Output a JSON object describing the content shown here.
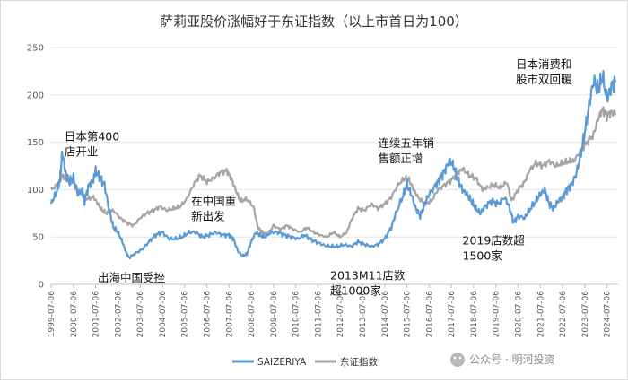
{
  "chart_data": {
    "type": "line",
    "title": "萨莉亚股价涨幅好于东证指数（以上市首日为100）",
    "xlabel": "",
    "ylabel": "",
    "ylim": [
      0,
      250
    ],
    "yticks": [
      "0",
      "50",
      "100",
      "150",
      "200",
      "250"
    ],
    "x_ticks": [
      "1999-07-06",
      "2000-07-06",
      "2001-07-06",
      "2002-07-06",
      "2003-07-06",
      "2004-07-06",
      "2005-07-06",
      "2006-07-06",
      "2007-07-06",
      "2008-07-06",
      "2009-07-06",
      "2010-07-06",
      "2011-07-06",
      "2012-07-06",
      "2013-07-06",
      "2014-07-06",
      "2015-07-06",
      "2016-07-06",
      "2017-07-06",
      "2018-07-06",
      "2019-07-06",
      "2020-07-06",
      "2021-07-06",
      "2022-07-06",
      "2023-07-06",
      "2024-07-06"
    ],
    "x_start": 1999.5,
    "x_end": 2025.0,
    "grid": true,
    "legend_position": "bottom-left",
    "series": [
      {
        "name": "SAIZERIYA",
        "color": "#5b9bd5",
        "points": [
          [
            1999.5,
            85
          ],
          [
            1999.7,
            95
          ],
          [
            1999.9,
            110
          ],
          [
            2000.0,
            140
          ],
          [
            2000.15,
            118
          ],
          [
            2000.3,
            108
          ],
          [
            2000.5,
            112
          ],
          [
            2000.7,
            95
          ],
          [
            2000.9,
            100
          ],
          [
            2001.0,
            88
          ],
          [
            2001.2,
            105
          ],
          [
            2001.4,
            110
          ],
          [
            2001.5,
            120
          ],
          [
            2001.7,
            112
          ],
          [
            2001.9,
            105
          ],
          [
            2002.1,
            80
          ],
          [
            2002.3,
            60
          ],
          [
            2002.5,
            55
          ],
          [
            2002.7,
            45
          ],
          [
            2002.85,
            35
          ],
          [
            2003.0,
            28
          ],
          [
            2003.3,
            33
          ],
          [
            2003.6,
            37
          ],
          [
            2003.9,
            45
          ],
          [
            2004.2,
            52
          ],
          [
            2004.5,
            55
          ],
          [
            2004.8,
            48
          ],
          [
            2005.1,
            48
          ],
          [
            2005.4,
            50
          ],
          [
            2005.7,
            55
          ],
          [
            2006.0,
            55
          ],
          [
            2006.3,
            50
          ],
          [
            2006.6,
            52
          ],
          [
            2006.9,
            55
          ],
          [
            2007.2,
            52
          ],
          [
            2007.5,
            52
          ],
          [
            2007.7,
            48
          ],
          [
            2007.9,
            35
          ],
          [
            2008.1,
            30
          ],
          [
            2008.3,
            32
          ],
          [
            2008.5,
            45
          ],
          [
            2008.7,
            55
          ],
          [
            2008.9,
            52
          ],
          [
            2009.1,
            50
          ],
          [
            2009.4,
            55
          ],
          [
            2009.7,
            55
          ],
          [
            2010.0,
            52
          ],
          [
            2010.3,
            50
          ],
          [
            2010.6,
            48
          ],
          [
            2010.9,
            52
          ],
          [
            2011.2,
            47
          ],
          [
            2011.5,
            44
          ],
          [
            2011.8,
            41
          ],
          [
            2012.1,
            40
          ],
          [
            2012.4,
            40
          ],
          [
            2012.7,
            42
          ],
          [
            2013.0,
            40
          ],
          [
            2013.3,
            45
          ],
          [
            2013.6,
            42
          ],
          [
            2013.9,
            40
          ],
          [
            2014.2,
            42
          ],
          [
            2014.5,
            48
          ],
          [
            2014.8,
            60
          ],
          [
            2015.0,
            75
          ],
          [
            2015.3,
            92
          ],
          [
            2015.5,
            105
          ],
          [
            2015.7,
            95
          ],
          [
            2015.9,
            80
          ],
          [
            2016.1,
            72
          ],
          [
            2016.3,
            85
          ],
          [
            2016.5,
            95
          ],
          [
            2016.8,
            105
          ],
          [
            2017.0,
            112
          ],
          [
            2017.2,
            120
          ],
          [
            2017.4,
            130
          ],
          [
            2017.6,
            125
          ],
          [
            2017.8,
            110
          ],
          [
            2018.0,
            100
          ],
          [
            2018.2,
            95
          ],
          [
            2018.4,
            88
          ],
          [
            2018.6,
            80
          ],
          [
            2018.8,
            75
          ],
          [
            2019.0,
            82
          ],
          [
            2019.3,
            88
          ],
          [
            2019.6,
            85
          ],
          [
            2019.9,
            92
          ],
          [
            2020.1,
            82
          ],
          [
            2020.3,
            65
          ],
          [
            2020.5,
            72
          ],
          [
            2020.8,
            70
          ],
          [
            2021.0,
            78
          ],
          [
            2021.3,
            88
          ],
          [
            2021.5,
            95
          ],
          [
            2021.7,
            100
          ],
          [
            2021.9,
            85
          ],
          [
            2022.1,
            80
          ],
          [
            2022.3,
            88
          ],
          [
            2022.5,
            92
          ],
          [
            2022.7,
            100
          ],
          [
            2022.9,
            105
          ],
          [
            2023.1,
            115
          ],
          [
            2023.3,
            135
          ],
          [
            2023.5,
            160
          ],
          [
            2023.7,
            190
          ],
          [
            2023.9,
            215
          ],
          [
            2024.1,
            205
          ],
          [
            2024.3,
            220
          ],
          [
            2024.5,
            195
          ],
          [
            2024.7,
            210
          ],
          [
            2024.9,
            215
          ]
        ]
      },
      {
        "name": "东证指数",
        "color": "#a5a5a5",
        "points": [
          [
            1999.5,
            100
          ],
          [
            1999.8,
            105
          ],
          [
            2000.0,
            115
          ],
          [
            2000.2,
            112
          ],
          [
            2000.5,
            108
          ],
          [
            2000.7,
            100
          ],
          [
            2000.9,
            95
          ],
          [
            2001.1,
            90
          ],
          [
            2001.4,
            92
          ],
          [
            2001.6,
            85
          ],
          [
            2001.8,
            78
          ],
          [
            2002.0,
            75
          ],
          [
            2002.3,
            78
          ],
          [
            2002.6,
            70
          ],
          [
            2002.9,
            65
          ],
          [
            2003.2,
            62
          ],
          [
            2003.5,
            70
          ],
          [
            2003.8,
            75
          ],
          [
            2004.1,
            78
          ],
          [
            2004.4,
            82
          ],
          [
            2004.7,
            78
          ],
          [
            2005.0,
            80
          ],
          [
            2005.3,
            82
          ],
          [
            2005.6,
            90
          ],
          [
            2005.9,
            105
          ],
          [
            2006.2,
            115
          ],
          [
            2006.5,
            108
          ],
          [
            2006.8,
            112
          ],
          [
            2007.1,
            118
          ],
          [
            2007.4,
            120
          ],
          [
            2007.6,
            112
          ],
          [
            2007.8,
            100
          ],
          [
            2008.0,
            88
          ],
          [
            2008.3,
            90
          ],
          [
            2008.6,
            82
          ],
          [
            2008.8,
            60
          ],
          [
            2009.0,
            55
          ],
          [
            2009.2,
            52
          ],
          [
            2009.5,
            62
          ],
          [
            2009.8,
            58
          ],
          [
            2010.1,
            62
          ],
          [
            2010.4,
            58
          ],
          [
            2010.7,
            55
          ],
          [
            2011.0,
            60
          ],
          [
            2011.3,
            55
          ],
          [
            2011.6,
            52
          ],
          [
            2011.9,
            50
          ],
          [
            2012.2,
            55
          ],
          [
            2012.5,
            50
          ],
          [
            2012.8,
            55
          ],
          [
            2013.0,
            68
          ],
          [
            2013.3,
            80
          ],
          [
            2013.6,
            78
          ],
          [
            2013.9,
            85
          ],
          [
            2014.2,
            80
          ],
          [
            2014.5,
            85
          ],
          [
            2014.8,
            92
          ],
          [
            2015.1,
            105
          ],
          [
            2015.4,
            112
          ],
          [
            2015.6,
            110
          ],
          [
            2015.8,
            100
          ],
          [
            2016.0,
            92
          ],
          [
            2016.3,
            85
          ],
          [
            2016.6,
            88
          ],
          [
            2016.9,
            100
          ],
          [
            2017.2,
            105
          ],
          [
            2017.5,
            110
          ],
          [
            2017.8,
            118
          ],
          [
            2018.0,
            122
          ],
          [
            2018.3,
            115
          ],
          [
            2018.6,
            112
          ],
          [
            2018.9,
            100
          ],
          [
            2019.1,
            102
          ],
          [
            2019.4,
            105
          ],
          [
            2019.7,
            102
          ],
          [
            2020.0,
            108
          ],
          [
            2020.2,
            88
          ],
          [
            2020.5,
            100
          ],
          [
            2020.8,
            108
          ],
          [
            2021.0,
            120
          ],
          [
            2021.3,
            128
          ],
          [
            2021.6,
            125
          ],
          [
            2021.9,
            130
          ],
          [
            2022.2,
            125
          ],
          [
            2022.5,
            128
          ],
          [
            2022.8,
            130
          ],
          [
            2023.0,
            130
          ],
          [
            2023.3,
            140
          ],
          [
            2023.6,
            150
          ],
          [
            2023.9,
            158
          ],
          [
            2024.1,
            175
          ],
          [
            2024.3,
            185
          ],
          [
            2024.5,
            178
          ],
          [
            2024.7,
            182
          ],
          [
            2024.9,
            180
          ]
        ]
      }
    ],
    "annotations": [
      {
        "lines": [
          "日本第400",
          "店开业"
        ],
        "x": 2000.1,
        "y": 152
      },
      {
        "lines": [
          "出海中国受挫"
        ],
        "x": 2001.6,
        "y": 3
      },
      {
        "lines": [
          "在中国重",
          "新出发"
        ],
        "x": 2005.8,
        "y": 84
      },
      {
        "lines": [
          "2013M11店数",
          "超1000家"
        ],
        "x": 2012.05,
        "y": 5
      },
      {
        "lines": [
          "连续五年销",
          "售额正增"
        ],
        "x": 2014.2,
        "y": 145
      },
      {
        "lines": [
          "2019店数超",
          "1500家"
        ],
        "x": 2018.0,
        "y": 42
      },
      {
        "lines": [
          "日本消费和",
          "股市双回暖"
        ],
        "x": 2020.4,
        "y": 228
      }
    ]
  },
  "watermark": "公众号 · 明河投资"
}
